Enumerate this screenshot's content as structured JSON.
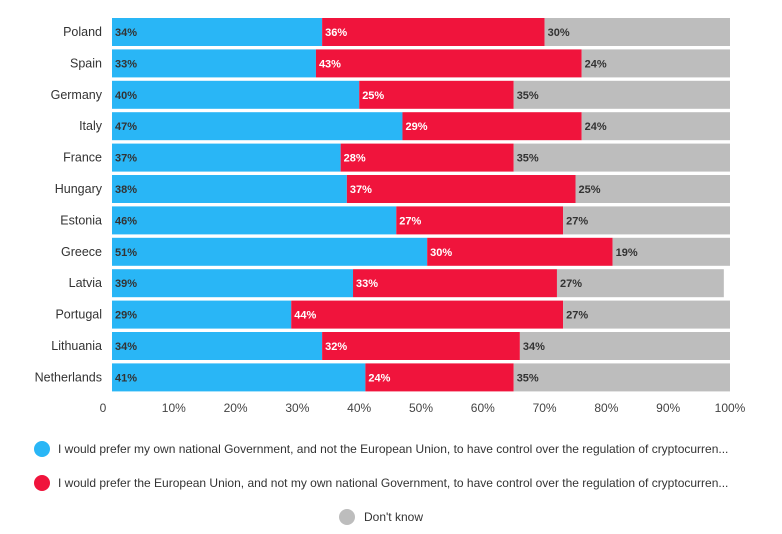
{
  "chart_data": {
    "type": "bar",
    "orientation": "horizontal",
    "stacked": true,
    "categories": [
      "Poland",
      "Spain",
      "Germany",
      "Italy",
      "France",
      "Hungary",
      "Estonia",
      "Greece",
      "Latvia",
      "Portugal",
      "Lithuania",
      "Netherlands"
    ],
    "series": [
      {
        "name": "I would prefer my own national Government, and not the European Union, to have control over the regulation of cryptocurren...",
        "color": "#29b6f6",
        "values": [
          34,
          33,
          40,
          47,
          37,
          38,
          46,
          51,
          39,
          29,
          34,
          41
        ]
      },
      {
        "name": "I would prefer the European Union, and not my own national Government, to have control over the regulation of cryptocurren...",
        "color": "#f0143c",
        "values": [
          36,
          43,
          25,
          29,
          28,
          37,
          27,
          30,
          33,
          44,
          32,
          24
        ]
      },
      {
        "name": "Don't know",
        "color": "#bdbdbd",
        "values": [
          30,
          24,
          35,
          24,
          35,
          25,
          27,
          19,
          27,
          27,
          34,
          35
        ]
      }
    ],
    "data_labels": [
      [
        "34%",
        "33%",
        "40%",
        "47%",
        "37%",
        "38%",
        "46%",
        "51%",
        "39%",
        "29%",
        "34%",
        "41%"
      ],
      [
        "36%",
        "43%",
        "25%",
        "29%",
        "28%",
        "37%",
        "27%",
        "30%",
        "33%",
        "44%",
        "32%",
        "24%"
      ],
      [
        "30%",
        "24%",
        "35%",
        "24%",
        "35%",
        "25%",
        "27%",
        "19%",
        "27%",
        "27%",
        "34%",
        "35%"
      ]
    ],
    "xlim": [
      0,
      100
    ],
    "x_ticks": [
      0,
      10,
      20,
      30,
      40,
      50,
      60,
      70,
      80,
      90,
      100
    ],
    "x_tick_labels": [
      "0",
      "10%",
      "20%",
      "30%",
      "40%",
      "50%",
      "60%",
      "70%",
      "80%",
      "90%",
      "100%"
    ],
    "grid": false,
    "legend_position": "bottom"
  }
}
